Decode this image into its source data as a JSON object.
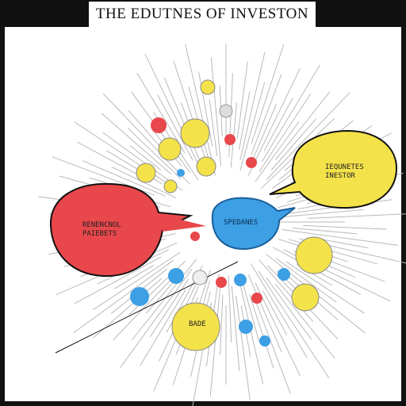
{
  "title": "THE EDUTNES OF INVESTON",
  "bubbles": {
    "red": {
      "line1": "RENENCNOL",
      "line2": "PAIEBETS"
    },
    "yellow": {
      "line1": "IEQUNETES",
      "line2": "INESTOR"
    },
    "blue": {
      "line1": "SPEDANES"
    },
    "small_yellow": {
      "line1": "BADE"
    }
  },
  "colors": {
    "red": "#e8474b",
    "yellow": "#f4e24a",
    "blue": "#3d9fe4",
    "ink": "#111111"
  }
}
